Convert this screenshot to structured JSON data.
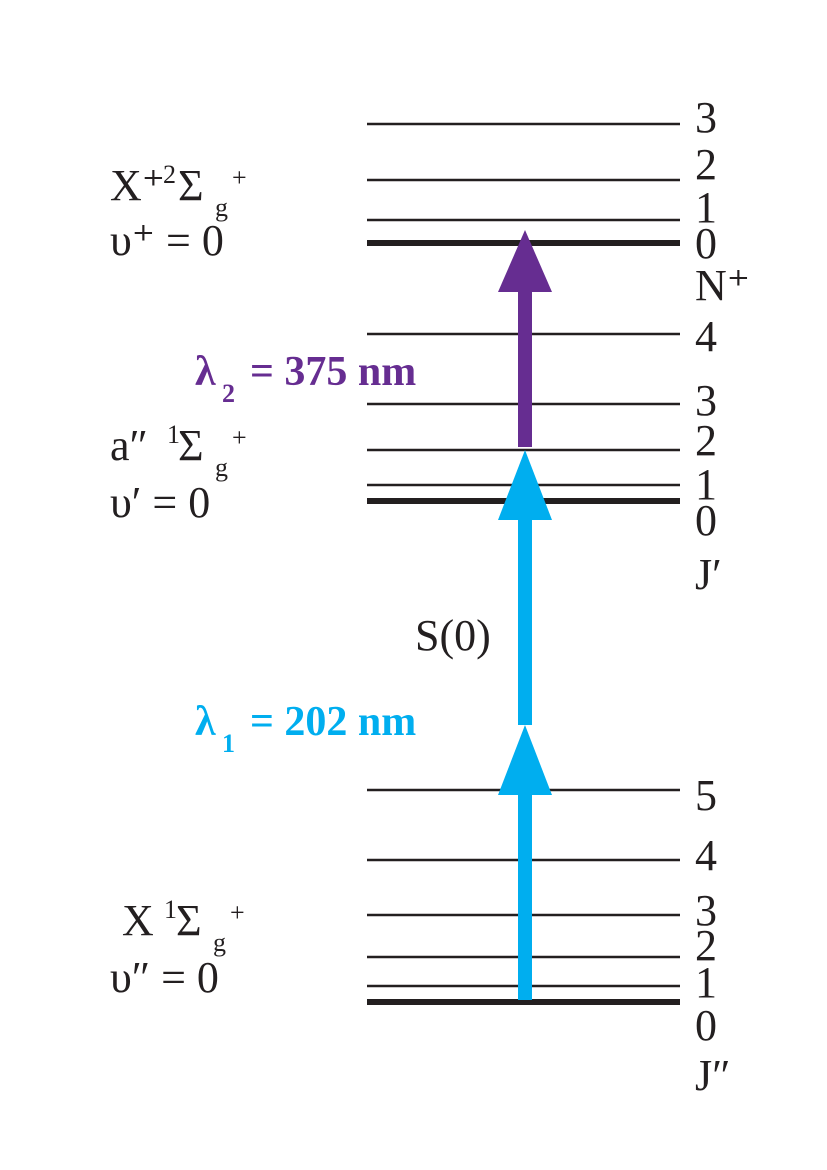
{
  "states": [
    {
      "term": {
        "letter": "X⁺",
        "multiplicity": "2",
        "symbol": "Σ",
        "subscript": "g",
        "superscript": "+"
      },
      "vibration": "υ⁺ = 0",
      "levels": [
        0,
        1,
        2,
        3
      ],
      "quantum_number": "N⁺"
    },
    {
      "term": {
        "letter": "a″",
        "multiplicity": "1",
        "symbol": "Σ",
        "subscript": "g",
        "superscript": "+"
      },
      "vibration": "υ′ = 0",
      "levels": [
        0,
        1,
        2,
        3,
        4
      ],
      "quantum_number": "J′"
    },
    {
      "term": {
        "letter": "X",
        "multiplicity": "1",
        "symbol": "Σ",
        "subscript": "g",
        "superscript": "+"
      },
      "vibration": "υ″ = 0",
      "levels": [
        0,
        1,
        2,
        3,
        4,
        5
      ],
      "quantum_number": "J″"
    }
  ],
  "transitions": [
    {
      "symbol": "λ",
      "subscript": "2",
      "text": "= 375 nm"
    },
    {
      "symbol": "λ",
      "subscript": "1",
      "text": "= 202 nm"
    }
  ],
  "branch": "S(0)"
}
